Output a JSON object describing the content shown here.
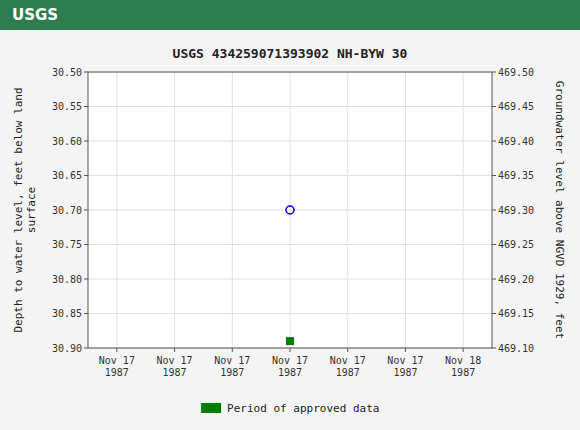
{
  "chart_data": {
    "type": "scatter",
    "title": "USGS 434259071393902 NH-BYW  30",
    "annotations": [
      {
        "text": "USGS"
      }
    ],
    "y_label": "Depth to water level, feet below land\nsurface",
    "y2_label": "Groundwater level above NGVD 1929, feet",
    "categories": [
      "Nov 17\n1987",
      "Nov 17\n1987",
      "Nov 17\n1987",
      "Nov 17\n1987",
      "Nov 17\n1987",
      "Nov 17\n1987",
      "Nov 18\n1987"
    ],
    "series": [
      {
        "color": "#0000cc",
        "marker": "circle",
        "values": [
          null,
          null,
          null,
          30.7,
          null,
          null,
          null
        ]
      },
      {
        "name": "Period of approved data",
        "color": "#008000",
        "marker": "square",
        "values": [
          null,
          null,
          null,
          30.89,
          null,
          null,
          null
        ]
      }
    ],
    "ylim": [
      30.9,
      30.5
    ],
    "yticks": [
      {
        "value": 30.5,
        "label": "30.50"
      },
      30.55,
      {
        "value": 30.6,
        "label": "30.60"
      },
      30.65,
      {
        "value": 30.7,
        "label": "30.70"
      },
      30.75,
      {
        "value": 30.8,
        "label": "30.80"
      },
      30.85,
      {
        "value": 30.9,
        "label": "30.90"
      }
    ],
    "y2lim": [
      469.1,
      469.5
    ],
    "y2ticks": [
      {
        "value": 469.5,
        "label": "469.50"
      },
      469.45,
      {
        "value": 469.4,
        "label": "469.40"
      },
      469.35,
      {
        "value": 469.3,
        "label": "469.30"
      },
      469.25,
      {
        "value": 469.2,
        "label": "469.20"
      },
      469.15,
      {
        "value": 469.1,
        "label": "469.10"
      }
    ],
    "grid": true,
    "legend": "bottom"
  }
}
